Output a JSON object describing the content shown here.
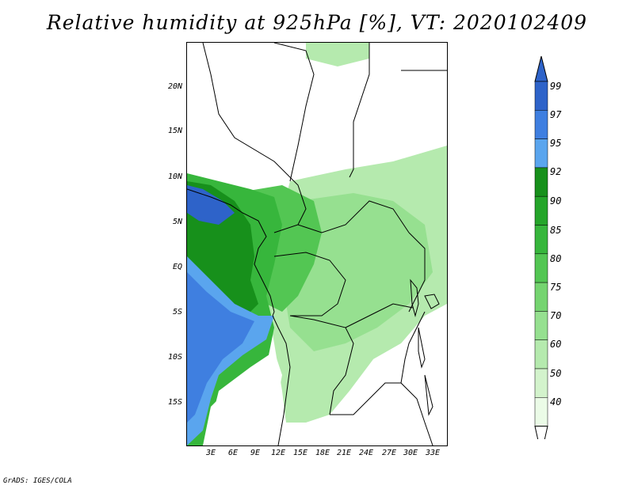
{
  "title": "Relative humidity at 925hPa [%], VT: 2020102409",
  "lat_labels": [
    "20N",
    "15N",
    "10N",
    "5N",
    "EQ",
    "5S",
    "10S",
    "15S"
  ],
  "lon_labels": [
    "3E",
    "6E",
    "9E",
    "12E",
    "15E",
    "18E",
    "21E",
    "24E",
    "27E",
    "30E",
    "33E"
  ],
  "colorbar": {
    "levels": [
      "99",
      "97",
      "95",
      "92",
      "90",
      "85",
      "80",
      "75",
      "70",
      "60",
      "50",
      "40"
    ],
    "colors": [
      "#2e63c9",
      "#3f7fe0",
      "#5aa5ee",
      "#17901b",
      "#25a52a",
      "#37b63c",
      "#53c653",
      "#75d470",
      "#96e090",
      "#b5eaae",
      "#d3f3cc",
      "#ebfbe7"
    ]
  },
  "credit": "GrADS: IGES/COLA"
}
